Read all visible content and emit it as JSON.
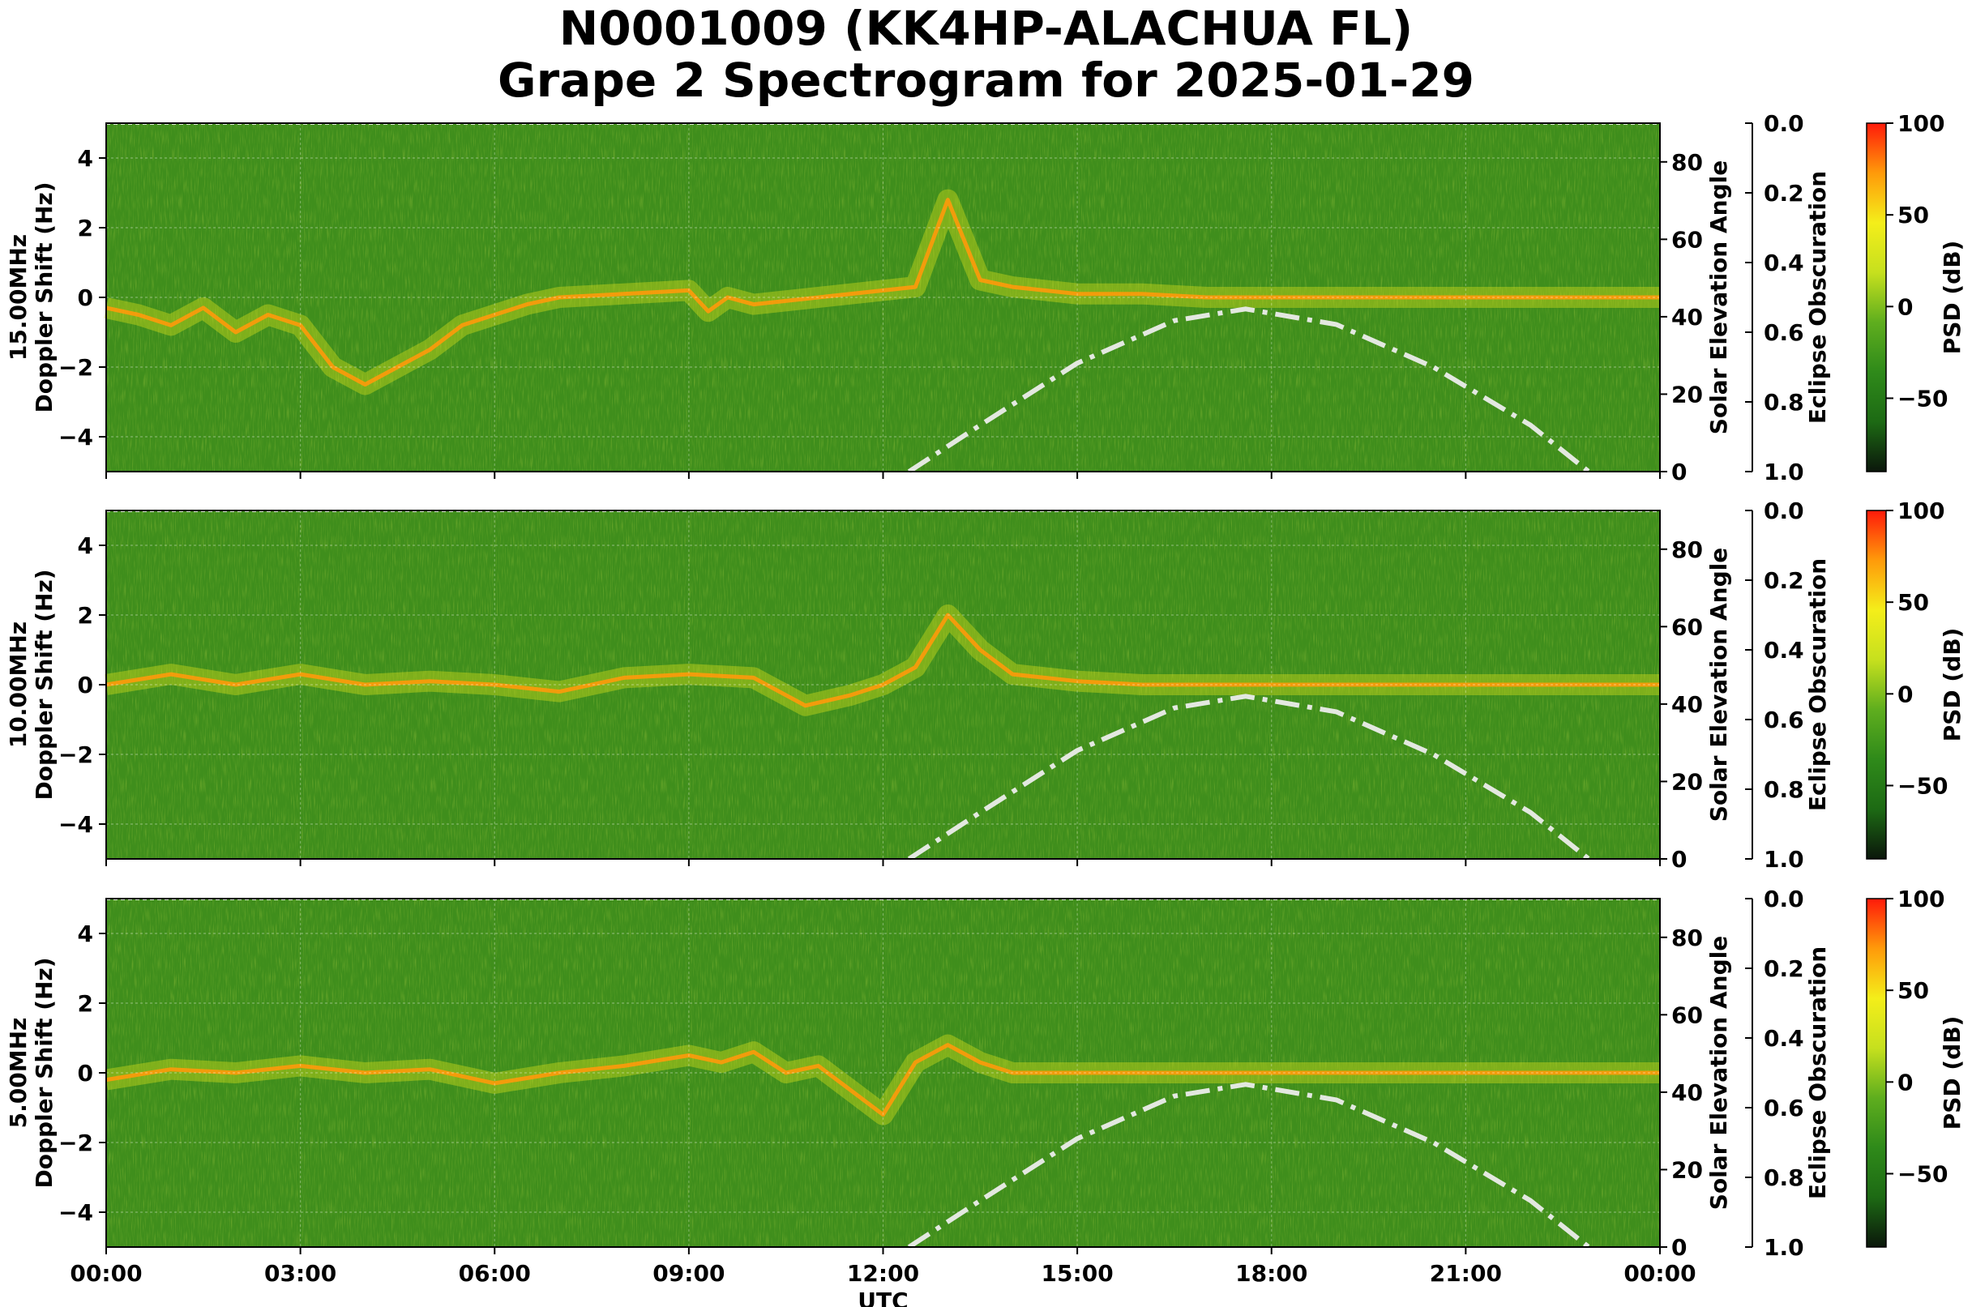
{
  "figure": {
    "title_line1": "N0001009 (KK4HP-ALACHUA FL)",
    "title_line2": "Grape 2 Spectrogram for 2025-01-29"
  },
  "colors": {
    "colormap": [
      "#0b170b",
      "#1d6a14",
      "#2f8a1a",
      "#5fae1e",
      "#c6e01e",
      "#f4ee1a",
      "#ff9a0a",
      "#ff1a0a"
    ],
    "background": "#3f8e1c",
    "solar_curve": "#e3e8e0"
  },
  "chart_data": [
    {
      "type": "heatmap",
      "panel_label": "15.00MHz",
      "ylabel": "Doppler Shift (Hz)",
      "ylim": [
        -5,
        5
      ],
      "yticks": [
        "4",
        "2",
        "0",
        "−2",
        "−4"
      ],
      "xlim_hours": [
        0,
        24
      ],
      "xticks": [
        "00:00",
        "03:00",
        "06:00",
        "09:00",
        "12:00",
        "15:00",
        "18:00",
        "21:00",
        "00:00"
      ],
      "xlabel": "",
      "y2label": "Solar Elevation Angle",
      "y2lim": [
        0,
        90
      ],
      "y2ticks": [
        "0",
        "20",
        "40",
        "60",
        "80"
      ],
      "eclipse_label": "Eclipse Obscuration",
      "eclipse_ticks": [
        "0.0",
        "0.2",
        "0.4",
        "0.6",
        "0.8",
        "1.0"
      ],
      "colorbar_label": "PSD (dB)",
      "colorbar_ticks": [
        "100",
        "50",
        "0",
        "−50"
      ],
      "colorbar_range": [
        -90,
        100
      ],
      "doppler_trace_x": [
        0,
        0.5,
        1,
        1.5,
        2,
        2.5,
        3,
        3.5,
        4,
        4.5,
        5,
        5.5,
        6,
        6.5,
        7,
        9,
        9.3,
        9.6,
        10,
        12.5,
        13,
        13.5,
        14,
        15,
        16,
        17,
        18,
        19,
        20,
        21,
        22,
        23,
        24
      ],
      "doppler_trace_y": [
        -0.3,
        -0.5,
        -0.8,
        -0.3,
        -1.0,
        -0.5,
        -0.8,
        -2.0,
        -2.5,
        -2.0,
        -1.5,
        -0.8,
        -0.5,
        -0.2,
        0,
        0.2,
        -0.4,
        0,
        -0.2,
        0.3,
        2.8,
        0.5,
        0.3,
        0.1,
        0.1,
        0,
        0,
        0,
        0,
        0,
        0,
        0,
        0
      ],
      "solar_elevation_x": [
        12.4,
        13.5,
        15,
        16.5,
        17.6,
        19,
        20.5,
        22,
        22.9
      ],
      "solar_elevation_y": [
        0,
        12,
        28,
        39,
        42,
        38,
        27,
        12,
        0
      ]
    },
    {
      "type": "heatmap",
      "panel_label": "10.00MHz",
      "ylabel": "Doppler Shift (Hz)",
      "ylim": [
        -5,
        5
      ],
      "yticks": [
        "4",
        "2",
        "0",
        "−2",
        "−4"
      ],
      "xlim_hours": [
        0,
        24
      ],
      "xticks": [
        "00:00",
        "03:00",
        "06:00",
        "09:00",
        "12:00",
        "15:00",
        "18:00",
        "21:00",
        "00:00"
      ],
      "xlabel": "",
      "y2label": "Solar Elevation Angle",
      "y2lim": [
        0,
        90
      ],
      "y2ticks": [
        "0",
        "20",
        "40",
        "60",
        "80"
      ],
      "eclipse_label": "Eclipse Obscuration",
      "eclipse_ticks": [
        "0.0",
        "0.2",
        "0.4",
        "0.6",
        "0.8",
        "1.0"
      ],
      "colorbar_label": "PSD (dB)",
      "colorbar_ticks": [
        "100",
        "50",
        "0",
        "−50"
      ],
      "colorbar_range": [
        -90,
        100
      ],
      "doppler_trace_x": [
        0,
        1,
        2,
        3,
        4,
        5,
        6,
        7,
        8,
        9,
        10,
        10.8,
        11.5,
        12,
        12.5,
        13,
        13.5,
        14,
        15,
        16,
        18,
        20,
        22,
        24
      ],
      "doppler_trace_y": [
        0,
        0.3,
        0,
        0.3,
        0,
        0.1,
        0,
        -0.2,
        0.2,
        0.3,
        0.2,
        -0.6,
        -0.3,
        0,
        0.5,
        2.0,
        1.0,
        0.3,
        0.1,
        0,
        0,
        0,
        0,
        0
      ],
      "solar_elevation_x": [
        12.4,
        13.5,
        15,
        16.5,
        17.6,
        19,
        20.5,
        22,
        22.9
      ],
      "solar_elevation_y": [
        0,
        12,
        28,
        39,
        42,
        38,
        27,
        12,
        0
      ]
    },
    {
      "type": "heatmap",
      "panel_label": "5.00MHz",
      "ylabel": "Doppler Shift (Hz)",
      "ylim": [
        -5,
        5
      ],
      "yticks": [
        "4",
        "2",
        "0",
        "−2",
        "−4"
      ],
      "xlim_hours": [
        0,
        24
      ],
      "xticks": [
        "00:00",
        "03:00",
        "06:00",
        "09:00",
        "12:00",
        "15:00",
        "18:00",
        "21:00",
        "00:00"
      ],
      "xlabel": "UTC",
      "y2label": "Solar Elevation Angle",
      "y2lim": [
        0,
        90
      ],
      "y2ticks": [
        "0",
        "20",
        "40",
        "60",
        "80"
      ],
      "eclipse_label": "Eclipse Obscuration",
      "eclipse_ticks": [
        "0.0",
        "0.2",
        "0.4",
        "0.6",
        "0.8",
        "1.0"
      ],
      "colorbar_label": "PSD (dB)",
      "colorbar_ticks": [
        "100",
        "50",
        "0",
        "−50"
      ],
      "colorbar_range": [
        -90,
        100
      ],
      "doppler_trace_x": [
        0,
        1,
        2,
        3,
        4,
        5,
        6,
        7,
        8,
        9,
        9.5,
        10,
        10.5,
        11,
        11.5,
        12,
        12.5,
        13,
        13.5,
        14,
        16,
        18,
        20,
        22,
        24
      ],
      "doppler_trace_y": [
        -0.2,
        0.1,
        0,
        0.2,
        0,
        0.1,
        -0.3,
        0,
        0.2,
        0.5,
        0.3,
        0.6,
        0,
        0.2,
        -0.5,
        -1.2,
        0.3,
        0.8,
        0.3,
        0,
        0,
        0,
        0,
        0,
        0
      ],
      "solar_elevation_x": [
        12.4,
        13.5,
        15,
        16.5,
        17.6,
        19,
        20.5,
        22,
        22.9
      ],
      "solar_elevation_y": [
        0,
        12,
        28,
        39,
        42,
        38,
        27,
        12,
        0
      ]
    }
  ]
}
